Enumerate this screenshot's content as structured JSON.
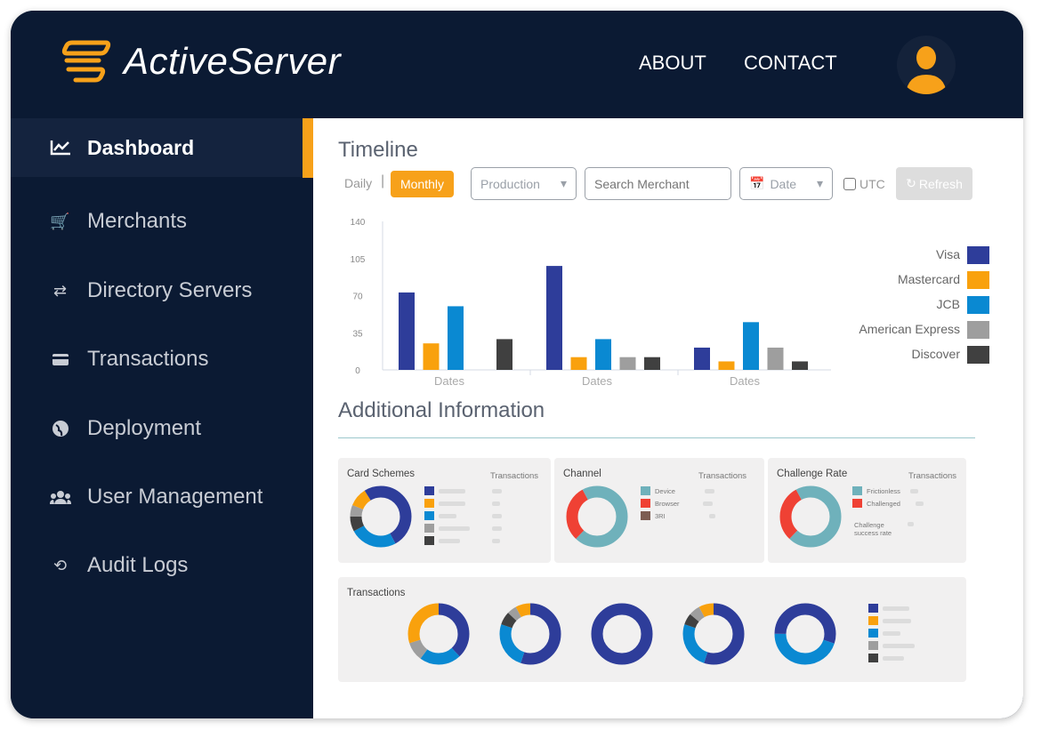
{
  "header": {
    "brand": "ActiveServer",
    "nav": [
      "ABOUT",
      "CONTACT"
    ]
  },
  "sidebar": {
    "items": [
      {
        "label": "Dashboard",
        "icon": "chart-line-icon",
        "active": true
      },
      {
        "label": "Merchants",
        "icon": "cart-icon"
      },
      {
        "label": "Directory Servers",
        "icon": "shuffle-icon"
      },
      {
        "label": "Transactions",
        "icon": "credit-card-icon"
      },
      {
        "label": "Deployment",
        "icon": "globe-icon"
      },
      {
        "label": "User Management",
        "icon": "users-icon"
      },
      {
        "label": "Audit Logs",
        "icon": "history-icon"
      }
    ]
  },
  "timeline": {
    "title": "Timeline",
    "daily": "Daily",
    "monthly": "Monthly",
    "environment": "Production",
    "search_placeholder": "Search Merchant",
    "date": "Date",
    "utc": "UTC",
    "refresh": "Refresh"
  },
  "colors": {
    "navy": "#0b1a33",
    "accent": "#f7a11a",
    "visa": "#2e3d9a",
    "mastercard": "#f9a10d",
    "jcb": "#0a89d2",
    "amex": "#9e9e9e",
    "discover": "#404040",
    "teal": "#6fb1bb",
    "red": "#ef4134",
    "brown": "#7d5d52"
  },
  "chart_data": {
    "type": "bar",
    "categories": [
      "Dates",
      "Dates",
      "Dates"
    ],
    "ylim": [
      0,
      140
    ],
    "yticks": [
      0,
      35,
      70,
      105,
      140
    ],
    "legend": "right",
    "series": [
      {
        "name": "Visa",
        "color": "#2e3d9a",
        "values": [
          73,
          98,
          21
        ]
      },
      {
        "name": "Mastercard",
        "color": "#f9a10d",
        "values": [
          25,
          12,
          8
        ]
      },
      {
        "name": "JCB",
        "color": "#0a89d2",
        "values": [
          60,
          29,
          45
        ]
      },
      {
        "name": "American Express",
        "color": "#9e9e9e",
        "values": [
          0,
          12,
          21
        ]
      },
      {
        "name": "Discover",
        "color": "#404040",
        "values": [
          29,
          12,
          8
        ]
      }
    ]
  },
  "additional": {
    "title": "Additional Information",
    "card_schemes": {
      "title": "Card Schemes",
      "col": "Transactions"
    },
    "channel": {
      "title": "Channel",
      "col": "Transactions",
      "legend": [
        "Device",
        "Browser",
        "3RI"
      ]
    },
    "challenge": {
      "title": "Challenge Rate",
      "col": "Transactions",
      "legend": [
        "Frictionless",
        "Challenged"
      ],
      "success_rate_label": "Challenge success rate"
    },
    "transactions": {
      "title": "Transactions"
    }
  }
}
